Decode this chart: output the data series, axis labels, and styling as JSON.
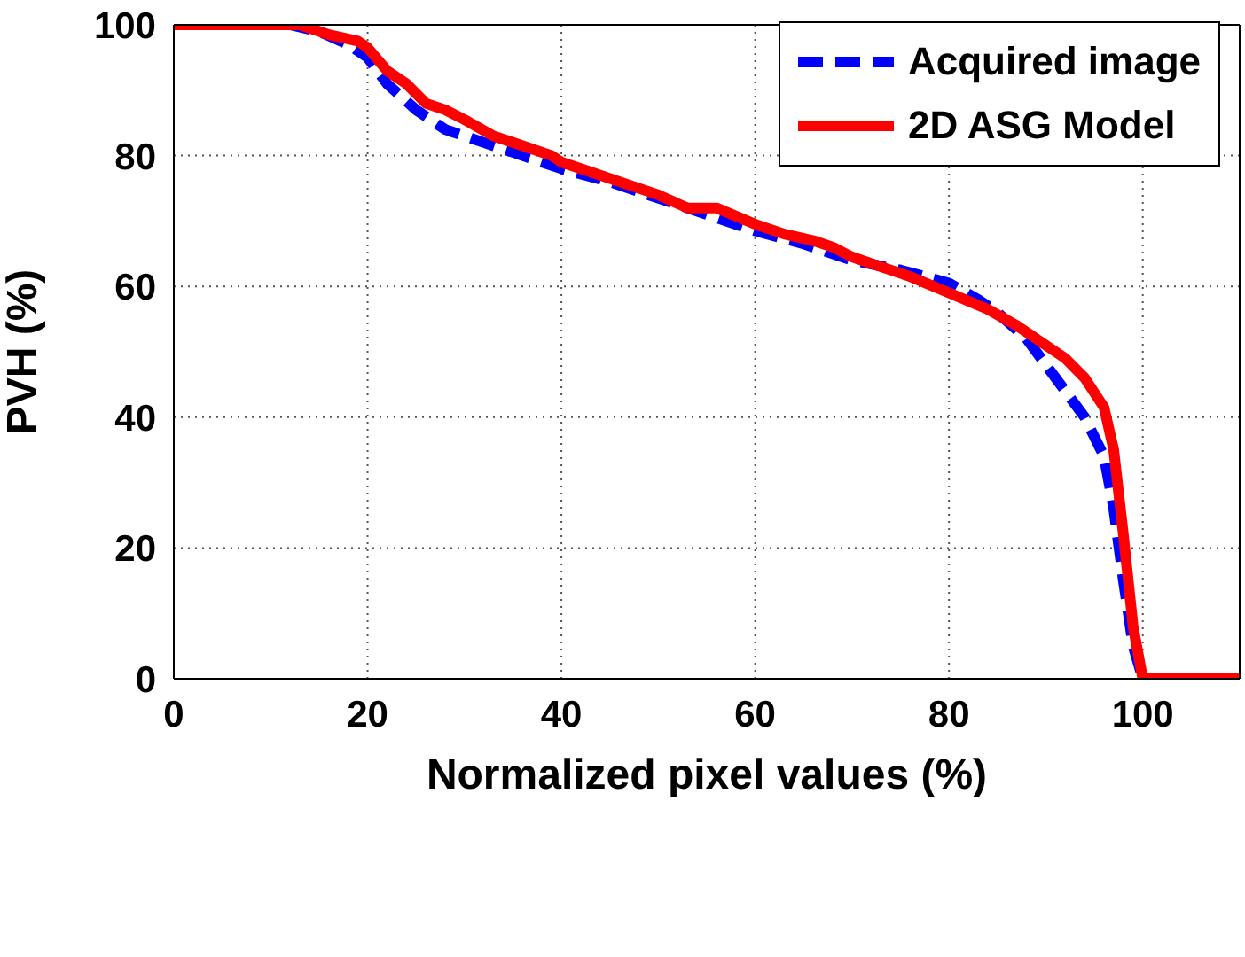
{
  "chart_data": {
    "type": "line",
    "xlabel": "Normalized pixel values (%)",
    "ylabel": "PVH (%)",
    "xlim": [
      0,
      110
    ],
    "ylim": [
      0,
      100
    ],
    "xticks": [
      0,
      20,
      40,
      60,
      80,
      100
    ],
    "yticks": [
      0,
      20,
      40,
      60,
      80,
      100
    ],
    "grid": true,
    "legend": "top right",
    "series": [
      {
        "name": "Acquired image",
        "color": "#0000ff",
        "line_style": "dashed",
        "x": [
          0,
          12,
          15,
          18,
          20,
          22,
          25,
          28,
          30,
          35,
          40,
          45,
          50,
          55,
          60,
          65,
          70,
          75,
          80,
          83,
          85,
          88,
          90,
          92,
          94,
          96,
          97,
          98,
          99,
          100,
          110
        ],
        "values": [
          100,
          100,
          99,
          97,
          95,
          91,
          87,
          84,
          83,
          80.5,
          78,
          76,
          73.5,
          71,
          68.5,
          66.5,
          64,
          62.5,
          60.5,
          58,
          56,
          52,
          48,
          44,
          40,
          34,
          26,
          15,
          5,
          0,
          0
        ]
      },
      {
        "name": "2D ASG Model",
        "color": "#ff0000",
        "line_style": "solid",
        "x": [
          0,
          13,
          16,
          19,
          20,
          22,
          24,
          26,
          28,
          30,
          33,
          36,
          39,
          40,
          43,
          46,
          50,
          53,
          56,
          60,
          63,
          66,
          68,
          70,
          73,
          76,
          80,
          84,
          87,
          90,
          92,
          94,
          96,
          97,
          98,
          99,
          100,
          110
        ],
        "values": [
          100,
          100,
          98.5,
          97.5,
          96.5,
          93,
          91,
          88,
          87,
          85.5,
          83,
          81.5,
          80,
          79,
          77.5,
          76,
          74,
          72,
          72,
          69.5,
          68,
          67,
          66,
          64.5,
          63,
          61.5,
          59,
          56.5,
          54,
          51,
          49,
          46,
          41.5,
          35,
          22,
          8,
          0,
          0
        ]
      }
    ]
  }
}
